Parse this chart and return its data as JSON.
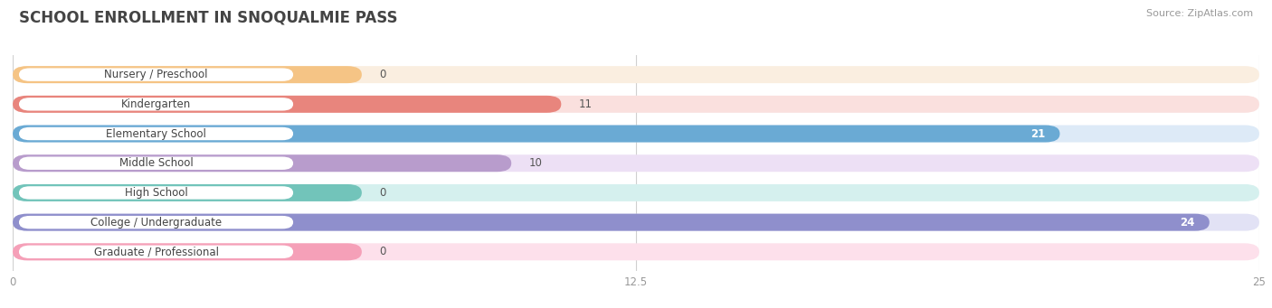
{
  "title": "SCHOOL ENROLLMENT IN SNOQUALMIE PASS",
  "source": "Source: ZipAtlas.com",
  "categories": [
    "Nursery / Preschool",
    "Kindergarten",
    "Elementary School",
    "Middle School",
    "High School",
    "College / Undergraduate",
    "Graduate / Professional"
  ],
  "values": [
    0,
    11,
    21,
    10,
    0,
    24,
    0
  ],
  "bar_colors": [
    "#f5c485",
    "#e8857d",
    "#6aaad4",
    "#b89ccc",
    "#72c4ba",
    "#8f8fcc",
    "#f5a0b8"
  ],
  "track_colors": [
    "#faeee0",
    "#fae0de",
    "#ddeaf7",
    "#ede0f5",
    "#d5f0ee",
    "#e2e2f5",
    "#fde0eb"
  ],
  "xlim": [
    0,
    25
  ],
  "xticks": [
    0,
    12.5,
    25
  ],
  "xtick_labels": [
    "0",
    "12.5",
    "25"
  ],
  "background_color": "#ffffff",
  "bar_height": 0.58,
  "label_fontsize": 8.5,
  "value_fontsize": 8.5,
  "title_fontsize": 12,
  "source_fontsize": 8,
  "value_colors": [
    "#555555",
    "#555555",
    "#ffffff",
    "#555555",
    "#555555",
    "#ffffff",
    "#555555"
  ],
  "value_inside": [
    false,
    false,
    true,
    false,
    false,
    true,
    false
  ],
  "zero_stub_pct": 0.28
}
